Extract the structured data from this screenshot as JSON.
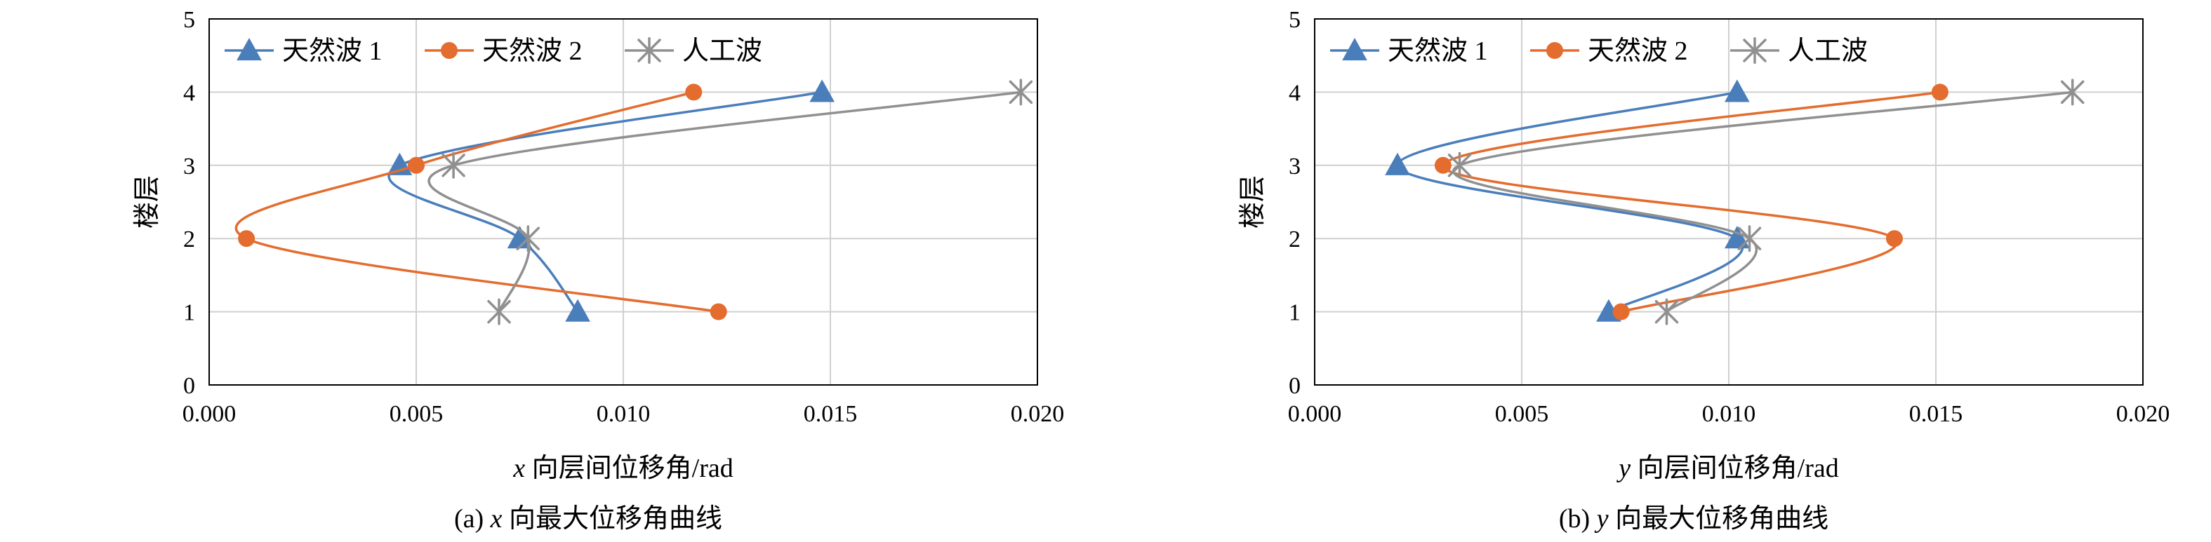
{
  "chart_data": [
    {
      "type": "line",
      "panel": "a",
      "xlabel_var": "x",
      "xlabel_rest": " 向层间位移角/rad",
      "ylabel": "楼层",
      "caption_prefix": "(a) ",
      "caption_var": "x",
      "caption_rest": " 向最大位移角曲线",
      "xlim": [
        0,
        0.02
      ],
      "ylim": [
        0,
        5
      ],
      "xticks": [
        0,
        0.005,
        0.01,
        0.015,
        0.02
      ],
      "xtick_labels": [
        "0.000",
        "0.005",
        "0.010",
        "0.015",
        "0.020"
      ],
      "yticks": [
        0,
        1,
        2,
        3,
        4,
        5
      ],
      "ytick_labels": [
        "0",
        "1",
        "2",
        "3",
        "4",
        "5"
      ],
      "grid": true,
      "legend_position": "top-left",
      "series": [
        {
          "name": "天然波 1",
          "marker": "triangle",
          "color": "#4a7ebb",
          "points": [
            [
              0.0089,
              1
            ],
            [
              0.0075,
              2
            ],
            [
              0.0046,
              3
            ],
            [
              0.0148,
              4
            ]
          ]
        },
        {
          "name": "天然波 2",
          "marker": "circle",
          "color": "#e46c2e",
          "points": [
            [
              0.0123,
              1
            ],
            [
              0.0009,
              2
            ],
            [
              0.005,
              3
            ],
            [
              0.0117,
              4
            ]
          ]
        },
        {
          "name": "人工波",
          "marker": "star",
          "color": "#909090",
          "points": [
            [
              0.007,
              1
            ],
            [
              0.0077,
              2
            ],
            [
              0.0059,
              3
            ],
            [
              0.0196,
              4
            ]
          ]
        }
      ]
    },
    {
      "type": "line",
      "panel": "b",
      "xlabel_var": "y",
      "xlabel_rest": " 向层间位移角/rad",
      "ylabel": "楼层",
      "caption_prefix": "(b) ",
      "caption_var": "y",
      "caption_rest": " 向最大位移角曲线",
      "xlim": [
        0,
        0.02
      ],
      "ylim": [
        0,
        5
      ],
      "xticks": [
        0,
        0.005,
        0.01,
        0.015,
        0.02
      ],
      "xtick_labels": [
        "0.000",
        "0.005",
        "0.010",
        "0.015",
        "0.020"
      ],
      "yticks": [
        0,
        1,
        2,
        3,
        4,
        5
      ],
      "ytick_labels": [
        "0",
        "1",
        "2",
        "3",
        "4",
        "5"
      ],
      "grid": true,
      "legend_position": "top-left",
      "series": [
        {
          "name": "天然波 1",
          "marker": "triangle",
          "color": "#4a7ebb",
          "points": [
            [
              0.0071,
              1
            ],
            [
              0.0102,
              2
            ],
            [
              0.002,
              3
            ],
            [
              0.0102,
              4
            ]
          ]
        },
        {
          "name": "天然波 2",
          "marker": "circle",
          "color": "#e46c2e",
          "points": [
            [
              0.0074,
              1
            ],
            [
              0.014,
              2
            ],
            [
              0.0031,
              3
            ],
            [
              0.0151,
              4
            ]
          ]
        },
        {
          "name": "人工波",
          "marker": "star",
          "color": "#909090",
          "points": [
            [
              0.0085,
              1
            ],
            [
              0.0105,
              2
            ],
            [
              0.0035,
              3
            ],
            [
              0.0183,
              4
            ]
          ]
        }
      ]
    }
  ]
}
